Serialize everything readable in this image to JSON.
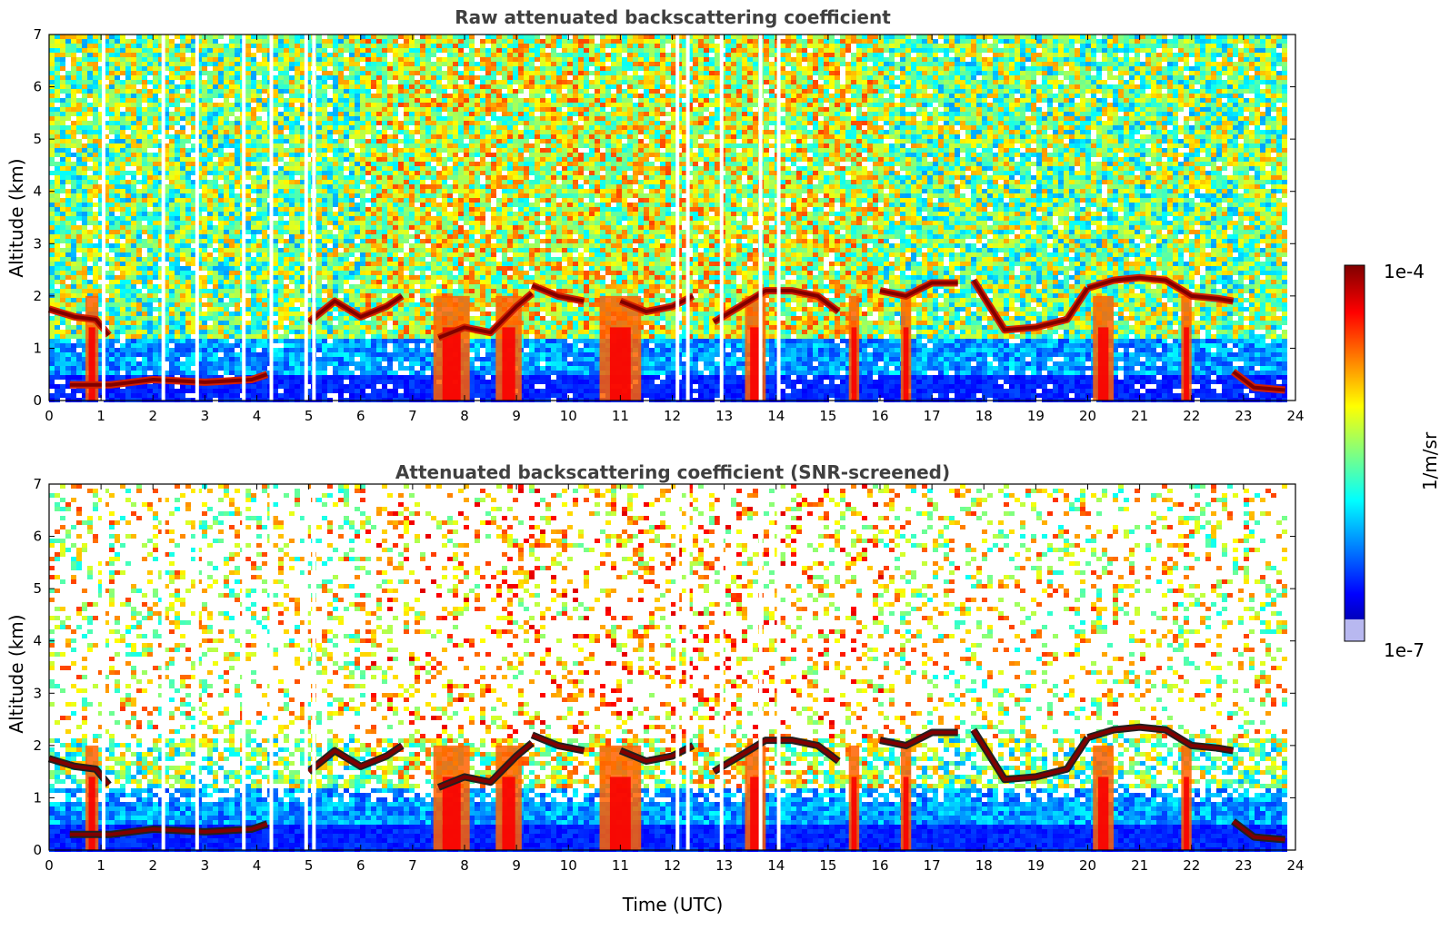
{
  "chart_data": [
    {
      "type": "heatmap",
      "title": "Raw attenuated backscattering coefficient",
      "xlabel": "",
      "ylabel": "Altitude (km)",
      "xlim": [
        0,
        24
      ],
      "ylim": [
        0,
        7
      ],
      "xticks": [
        "0",
        "1",
        "2",
        "3",
        "4",
        "5",
        "6",
        "7",
        "8",
        "9",
        "10",
        "11",
        "12",
        "13",
        "14",
        "15",
        "16",
        "17",
        "18",
        "19",
        "20",
        "21",
        "22",
        "23",
        "24"
      ],
      "yticks": [
        "0",
        "1",
        "2",
        "3",
        "4",
        "5",
        "6",
        "7"
      ],
      "screened": false,
      "data_gaps_utc": [
        1.05,
        2.2,
        2.85,
        3.75,
        4.28,
        4.95,
        5.1,
        12.1,
        12.3,
        12.95,
        13.7,
        14.05
      ],
      "layers": [
        {
          "feature": "cloud layer",
          "x": [
            0.0,
            0.5,
            0.9,
            1.15
          ],
          "y": [
            1.75,
            1.6,
            1.55,
            1.25
          ]
        },
        {
          "feature": "boundary layer top",
          "x": [
            0.4,
            1.2,
            2.0,
            3.0,
            3.9,
            4.2
          ],
          "y": [
            0.3,
            0.3,
            0.4,
            0.35,
            0.4,
            0.5
          ]
        },
        {
          "feature": "cloud layer",
          "x": [
            5.0,
            5.5,
            6.0,
            6.5,
            6.8
          ],
          "y": [
            1.5,
            1.9,
            1.6,
            1.8,
            2.0
          ]
        },
        {
          "feature": "cloud layer",
          "x": [
            7.5,
            8.0,
            8.5,
            9.0,
            9.3
          ],
          "y": [
            1.2,
            1.4,
            1.3,
            1.8,
            2.05
          ]
        },
        {
          "feature": "cloud layer",
          "x": [
            9.3,
            9.8,
            10.3
          ],
          "y": [
            2.2,
            2.0,
            1.9
          ]
        },
        {
          "feature": "cloud layer",
          "x": [
            11.0,
            11.5,
            12.0,
            12.4
          ],
          "y": [
            1.9,
            1.7,
            1.8,
            2.0
          ]
        },
        {
          "feature": "cloud layer",
          "x": [
            12.8,
            13.3,
            13.8,
            14.3,
            14.8,
            15.2
          ],
          "y": [
            1.5,
            1.8,
            2.1,
            2.1,
            2.0,
            1.7
          ]
        },
        {
          "feature": "cloud layer",
          "x": [
            16.0,
            16.5,
            17.0,
            17.5
          ],
          "y": [
            2.1,
            2.0,
            2.25,
            2.25
          ]
        },
        {
          "feature": "cloud layer",
          "x": [
            17.8,
            18.4,
            19.0,
            19.6,
            20.0
          ],
          "y": [
            2.3,
            1.35,
            1.4,
            1.55,
            2.15
          ]
        },
        {
          "feature": "cloud layer",
          "x": [
            20.0,
            20.5,
            21.0,
            21.5,
            22.0,
            22.5,
            22.8
          ],
          "y": [
            2.15,
            2.3,
            2.35,
            2.3,
            2.0,
            1.95,
            1.9
          ]
        },
        {
          "feature": "boundary layer top",
          "x": [
            22.8,
            23.2,
            23.8
          ],
          "y": [
            0.55,
            0.25,
            0.2
          ]
        }
      ],
      "precipitation_streaks_utc": [
        [
          0.7,
          0.95
        ],
        [
          7.4,
          8.1
        ],
        [
          8.6,
          9.1
        ],
        [
          10.6,
          11.4
        ],
        [
          13.4,
          13.8
        ],
        [
          15.4,
          15.6
        ],
        [
          16.4,
          16.6
        ],
        [
          20.1,
          20.5
        ],
        [
          21.8,
          22.0
        ]
      ]
    },
    {
      "type": "heatmap",
      "title": "Attenuated backscattering coefficient (SNR-screened)",
      "xlabel": "Time (UTC)",
      "ylabel": "Altitude (km)",
      "xlim": [
        0,
        24
      ],
      "ylim": [
        0,
        7
      ],
      "xticks": [
        "0",
        "1",
        "2",
        "3",
        "4",
        "5",
        "6",
        "7",
        "8",
        "9",
        "10",
        "11",
        "12",
        "13",
        "14",
        "15",
        "16",
        "17",
        "18",
        "19",
        "20",
        "21",
        "22",
        "23",
        "24"
      ],
      "yticks": [
        "0",
        "1",
        "2",
        "3",
        "4",
        "5",
        "6",
        "7"
      ],
      "screened": true
    }
  ],
  "colorbar": {
    "label": "1/m/sr",
    "max_label": "1e-4",
    "min_label": "1e-7",
    "min": 1e-07,
    "max": 0.0001,
    "scale": "log",
    "colormap": "jet"
  },
  "colors": {
    "title": "#404040",
    "background": "#ffffff",
    "jet": [
      "#000080",
      "#0000ff",
      "#0080ff",
      "#00ffff",
      "#80ff80",
      "#ffff00",
      "#ff8000",
      "#ff0000",
      "#800000"
    ]
  }
}
